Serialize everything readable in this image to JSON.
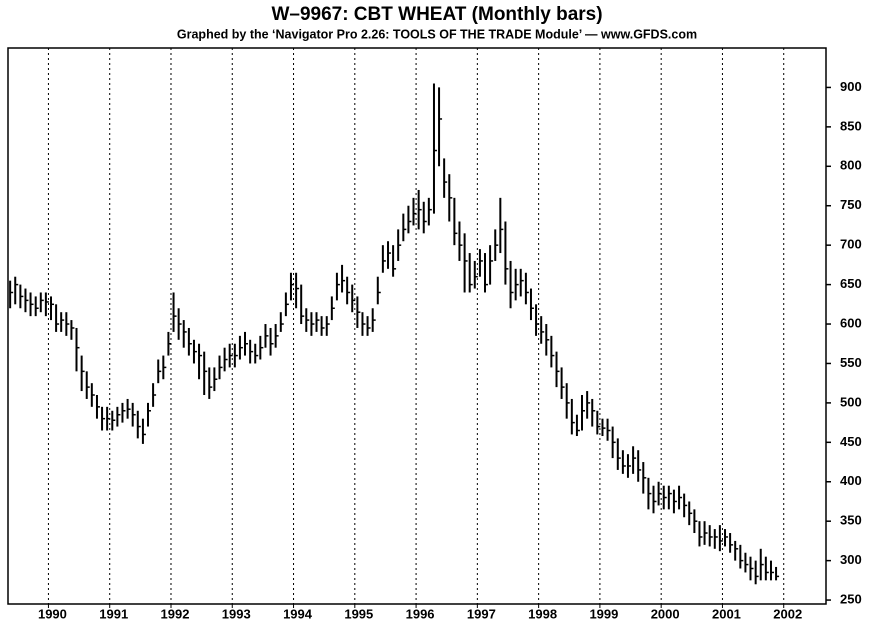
{
  "chart_data": {
    "type": "ohlc",
    "title": "W–9967: CBT WHEAT (Monthly bars)",
    "subtitle": "Graphed by the ‘Navigator Pro 2.26: TOOLS OF THE TRADE Module’ — www.GFDS.com",
    "x": [
      1989.375,
      1989.458,
      1989.542,
      1989.625,
      1989.708,
      1989.792,
      1989.875,
      1989.958,
      1990.042,
      1990.125,
      1990.208,
      1990.292,
      1990.375,
      1990.458,
      1990.542,
      1990.625,
      1990.708,
      1990.792,
      1990.875,
      1990.958,
      1991.042,
      1991.125,
      1991.208,
      1991.292,
      1991.375,
      1991.458,
      1991.542,
      1991.625,
      1991.708,
      1991.792,
      1991.875,
      1991.958,
      1992.042,
      1992.125,
      1992.208,
      1992.292,
      1992.375,
      1992.458,
      1992.542,
      1992.625,
      1992.708,
      1992.792,
      1992.875,
      1992.958,
      1993.042,
      1993.125,
      1993.208,
      1993.292,
      1993.375,
      1993.458,
      1993.542,
      1993.625,
      1993.708,
      1993.792,
      1993.875,
      1993.958,
      1994.042,
      1994.125,
      1994.208,
      1994.292,
      1994.375,
      1994.458,
      1994.542,
      1994.625,
      1994.708,
      1994.792,
      1994.875,
      1994.958,
      1995.042,
      1995.125,
      1995.208,
      1995.292,
      1995.375,
      1995.458,
      1995.542,
      1995.625,
      1995.708,
      1995.792,
      1995.875,
      1995.958,
      1996.042,
      1996.125,
      1996.208,
      1996.292,
      1996.375,
      1996.458,
      1996.542,
      1996.625,
      1996.708,
      1996.792,
      1996.875,
      1996.958,
      1997.042,
      1997.125,
      1997.208,
      1997.292,
      1997.375,
      1997.458,
      1997.542,
      1997.625,
      1997.708,
      1997.792,
      1997.875,
      1997.958,
      1998.042,
      1998.125,
      1998.208,
      1998.292,
      1998.375,
      1998.458,
      1998.542,
      1998.625,
      1998.708,
      1998.792,
      1998.875,
      1998.958,
      1999.042,
      1999.125,
      1999.208,
      1999.292,
      1999.375,
      1999.458,
      1999.542,
      1999.625,
      1999.708,
      1999.792,
      1999.875,
      1999.958,
      2000.042,
      2000.125,
      2000.208,
      2000.292,
      2000.375,
      2000.458,
      2000.542,
      2000.625,
      2000.708,
      2000.792,
      2000.875,
      2000.958,
      2001.042,
      2001.125,
      2001.208,
      2001.292,
      2001.375,
      2001.458,
      2001.542,
      2001.625,
      2001.708,
      2001.792,
      2001.875
    ],
    "high": [
      655,
      660,
      650,
      645,
      640,
      635,
      640,
      640,
      635,
      625,
      615,
      615,
      605,
      595,
      560,
      540,
      525,
      510,
      495,
      495,
      490,
      495,
      500,
      505,
      500,
      490,
      480,
      500,
      525,
      555,
      560,
      590,
      640,
      620,
      605,
      595,
      580,
      575,
      565,
      545,
      545,
      560,
      570,
      575,
      575,
      585,
      590,
      580,
      575,
      585,
      600,
      595,
      600,
      615,
      640,
      665,
      665,
      650,
      620,
      615,
      615,
      610,
      610,
      635,
      665,
      675,
      660,
      650,
      635,
      615,
      610,
      620,
      660,
      700,
      705,
      700,
      720,
      740,
      750,
      760,
      770,
      755,
      760,
      905,
      900,
      810,
      790,
      760,
      730,
      715,
      690,
      680,
      695,
      690,
      700,
      720,
      760,
      730,
      680,
      670,
      670,
      665,
      645,
      625,
      610,
      600,
      585,
      565,
      545,
      525,
      505,
      485,
      510,
      515,
      505,
      490,
      480,
      480,
      470,
      455,
      440,
      435,
      445,
      440,
      425,
      405,
      395,
      400,
      395,
      395,
      390,
      395,
      385,
      375,
      365,
      350,
      350,
      345,
      340,
      345,
      340,
      335,
      325,
      320,
      310,
      305,
      300,
      315,
      305,
      300,
      292
    ],
    "low": [
      620,
      625,
      620,
      615,
      610,
      610,
      615,
      610,
      605,
      590,
      590,
      585,
      580,
      540,
      515,
      505,
      495,
      480,
      465,
      465,
      465,
      470,
      475,
      480,
      470,
      455,
      448,
      470,
      495,
      525,
      530,
      560,
      590,
      580,
      570,
      560,
      550,
      530,
      510,
      505,
      515,
      530,
      540,
      545,
      545,
      555,
      560,
      550,
      550,
      555,
      570,
      560,
      570,
      590,
      610,
      630,
      620,
      600,
      590,
      585,
      590,
      585,
      585,
      605,
      630,
      640,
      625,
      615,
      595,
      585,
      585,
      590,
      625,
      665,
      670,
      660,
      680,
      705,
      715,
      725,
      720,
      715,
      725,
      740,
      800,
      760,
      730,
      700,
      680,
      640,
      640,
      645,
      660,
      640,
      650,
      680,
      690,
      650,
      620,
      630,
      635,
      625,
      605,
      585,
      575,
      560,
      545,
      520,
      505,
      480,
      460,
      458,
      465,
      480,
      470,
      460,
      458,
      452,
      430,
      415,
      410,
      405,
      410,
      400,
      385,
      365,
      360,
      370,
      365,
      365,
      360,
      365,
      355,
      345,
      335,
      318,
      320,
      318,
      315,
      312,
      318,
      310,
      300,
      290,
      285,
      275,
      270,
      275,
      275,
      275,
      275
    ],
    "close": [
      640,
      650,
      635,
      630,
      625,
      620,
      630,
      628,
      625,
      600,
      605,
      600,
      595,
      570,
      540,
      520,
      510,
      495,
      480,
      480,
      478,
      485,
      490,
      492,
      485,
      470,
      460,
      490,
      510,
      540,
      545,
      575,
      610,
      600,
      590,
      575,
      565,
      560,
      540,
      520,
      530,
      545,
      555,
      560,
      560,
      570,
      575,
      565,
      560,
      570,
      585,
      575,
      585,
      600,
      625,
      650,
      645,
      610,
      605,
      600,
      605,
      595,
      600,
      620,
      650,
      655,
      640,
      630,
      615,
      600,
      595,
      605,
      640,
      680,
      690,
      670,
      700,
      720,
      730,
      740,
      745,
      730,
      745,
      820,
      860,
      780,
      760,
      715,
      700,
      680,
      650,
      660,
      680,
      650,
      680,
      700,
      720,
      670,
      640,
      650,
      655,
      640,
      620,
      600,
      590,
      580,
      560,
      540,
      520,
      500,
      475,
      465,
      490,
      500,
      490,
      470,
      468,
      465,
      450,
      430,
      420,
      420,
      430,
      415,
      405,
      385,
      375,
      385,
      380,
      385,
      375,
      380,
      370,
      360,
      350,
      330,
      335,
      330,
      330,
      325,
      330,
      320,
      315,
      300,
      295,
      290,
      280,
      295,
      285,
      285,
      280
    ],
    "color": "#000000",
    "xlim": [
      1989.34,
      2002.69
    ],
    "xticks": [
      1990,
      1991,
      1992,
      1993,
      1994,
      1995,
      1996,
      1997,
      1998,
      1999,
      2000,
      2001,
      2002
    ],
    "ylim": [
      245,
      950
    ],
    "yticks": [
      250,
      300,
      350,
      400,
      450,
      500,
      550,
      600,
      650,
      700,
      750,
      800,
      850,
      900
    ],
    "grid": "x"
  }
}
